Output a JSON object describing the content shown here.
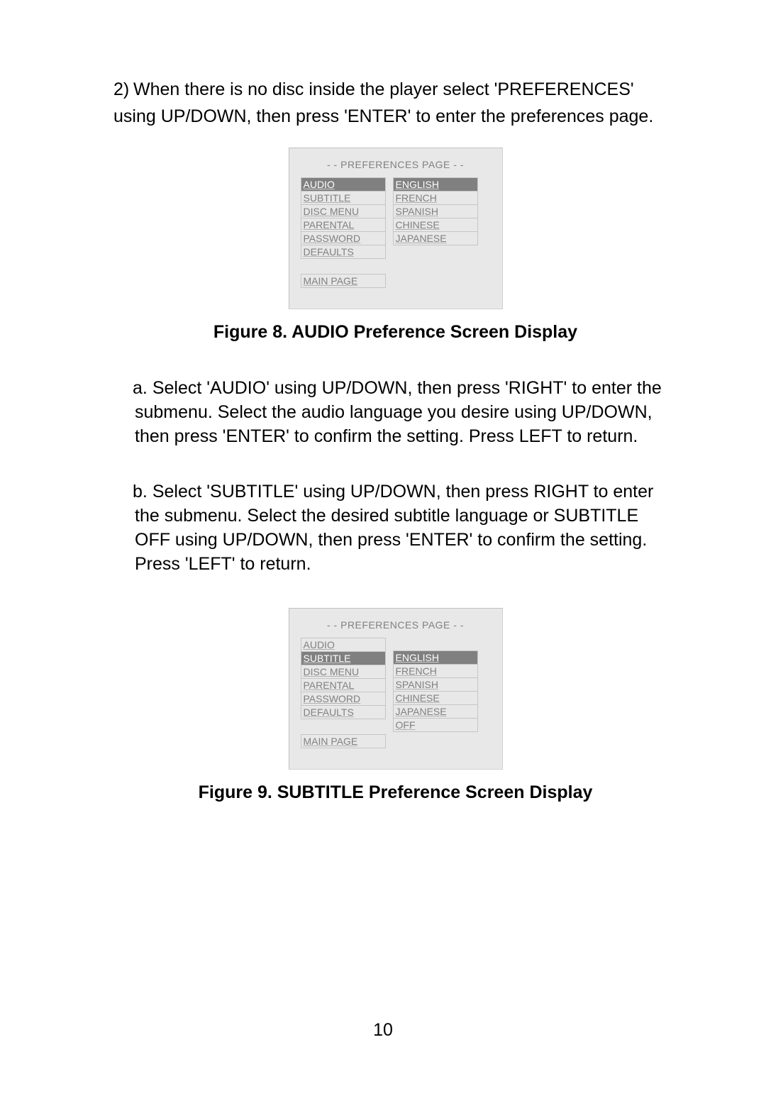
{
  "intro": {
    "marker": "2)",
    "text": "When there is no disc inside the player select 'PREFERENCES' using UP/DOWN,  then press 'ENTER' to enter the preferences page."
  },
  "screen1": {
    "header": "- -  PREFERENCES PAGE  - -",
    "leftItems": [
      {
        "label": "AUDIO",
        "highlighted": true
      },
      {
        "label": "SUBTITLE",
        "highlighted": false
      },
      {
        "label": "DISC MENU",
        "highlighted": false
      },
      {
        "label": "PARENTAL",
        "highlighted": false
      },
      {
        "label": "PASSWORD",
        "highlighted": false
      },
      {
        "label": "DEFAULTS",
        "highlighted": false
      }
    ],
    "mainPage": "MAIN PAGE",
    "rightItems": [
      {
        "label": "ENGLISH",
        "highlighted": true
      },
      {
        "label": "FRENCH",
        "highlighted": false
      },
      {
        "label": "SPANISH",
        "highlighted": false
      },
      {
        "label": "CHINESE",
        "highlighted": false
      },
      {
        "label": "JAPANESE",
        "highlighted": false
      }
    ]
  },
  "figure1Caption": "Figure 8. AUDIO Preference Screen Display",
  "subA": {
    "marker": "a.",
    "text": "Select  'AUDIO' using UP/DOWN, then press 'RIGHT' to enter the submenu. Select the audio language you desire using UP/DOWN, then press 'ENTER' to confirm the setting. Press  LEFT to return."
  },
  "subB": {
    "marker": "b.",
    "text": "Select 'SUBTITLE' using UP/DOWN, then press RIGHT to enter the submenu. Select the desired  subtitle language or SUBTITLE OFF using UP/DOWN, then press 'ENTER' to confirm the setting. Press 'LEFT'  to return."
  },
  "screen2": {
    "header": "- -  PREFERENCES PAGE  - -",
    "leftItems": [
      {
        "label": "AUDIO",
        "highlighted": false
      },
      {
        "label": "SUBTITLE",
        "highlighted": true
      },
      {
        "label": "DISC MENU",
        "highlighted": false
      },
      {
        "label": "PARENTAL",
        "highlighted": false
      },
      {
        "label": "PASSWORD",
        "highlighted": false
      },
      {
        "label": "DEFAULTS",
        "highlighted": false
      }
    ],
    "mainPage": "MAIN PAGE",
    "rightItems": [
      {
        "label": "ENGLISH",
        "highlighted": true
      },
      {
        "label": "FRENCH",
        "highlighted": false
      },
      {
        "label": "SPANISH",
        "highlighted": false
      },
      {
        "label": "CHINESE",
        "highlighted": false
      },
      {
        "label": "JAPANESE",
        "highlighted": false
      },
      {
        "label": "OFF",
        "highlighted": false
      }
    ],
    "rightShift": true
  },
  "figure2Caption": "Figure 9. SUBTITLE Preference Screen Display",
  "pageNumber": "10"
}
